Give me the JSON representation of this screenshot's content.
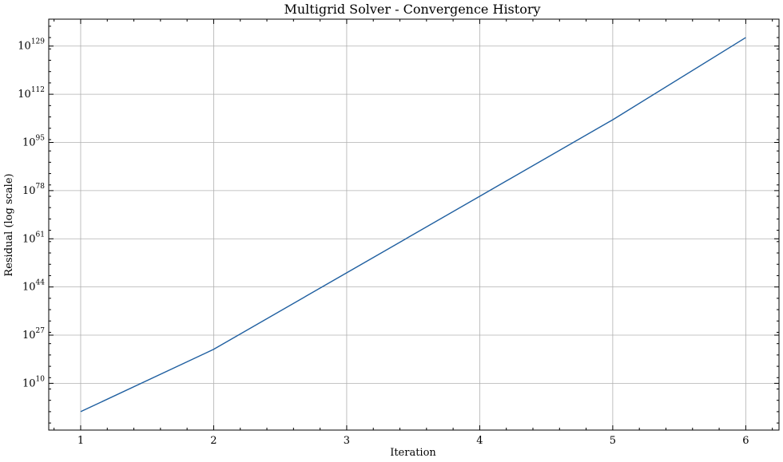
{
  "chart_data": {
    "type": "line",
    "title": "Multigrid Solver - Convergence History",
    "xlabel": "Iteration",
    "ylabel": "Residual (log scale)",
    "yscale": "log",
    "grid": true,
    "x": [
      1,
      2,
      3,
      4,
      5,
      6
    ],
    "xlim": [
      0.76,
      6.25
    ],
    "ylim_exponent": [
      -6.5,
      138.5
    ],
    "x_ticks": [
      1,
      2,
      3,
      4,
      5,
      6
    ],
    "y_tick_exponents": [
      10,
      27,
      44,
      61,
      78,
      95,
      112,
      129
    ],
    "series": [
      {
        "color": "#1f5fa0",
        "log10_values": [
          0,
          22,
          49,
          76,
          103,
          132
        ]
      }
    ]
  }
}
